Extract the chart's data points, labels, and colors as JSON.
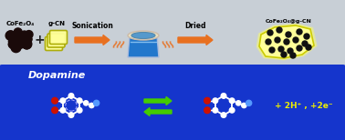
{
  "top_bg": "#c8cfd6",
  "bottom_bg": "#1535cc",
  "arrow_color": "#e87020",
  "green_arrow_color": "#44cc00",
  "label_cofe": "CoFe₂O₄",
  "label_gcn": "g-CN",
  "label_sonication": "Sonication",
  "label_dried": "Dried",
  "label_product": "CoFe₂O₄@g-CN",
  "label_dopamine": "Dopamine",
  "label_electrons": "+ 2H⁺ , +2e⁻",
  "dopamine_color": "#ffffff",
  "oh_color": "#cc1100",
  "nitrogen_color": "#5599ff",
  "text_color_top": "#000000",
  "electron_text_color": "#eeee00",
  "beaker_body": "#2277cc",
  "beaker_rim": "#e8dfc0",
  "beaker_inner": "#5599cc"
}
